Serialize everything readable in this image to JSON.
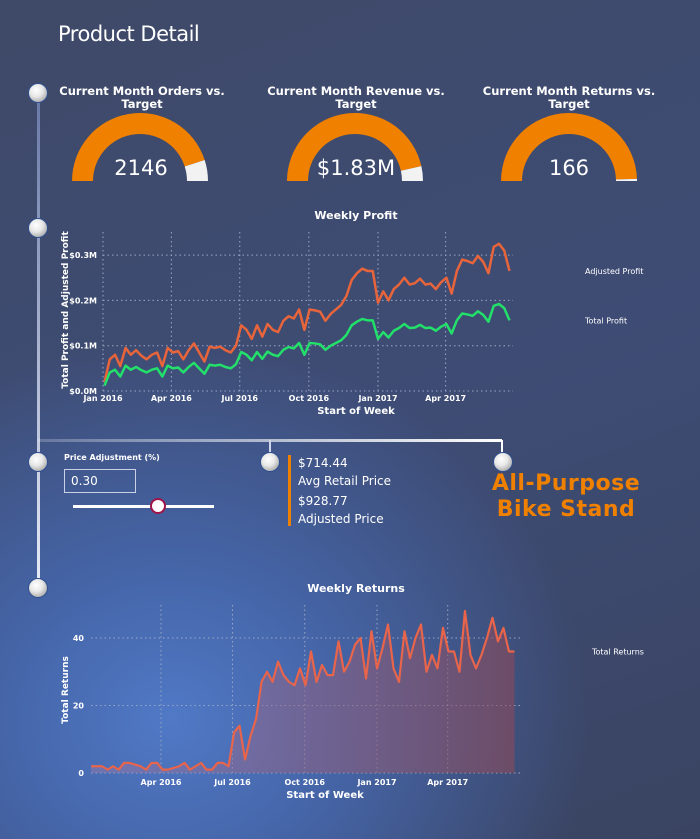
{
  "page": {
    "title": "Product Detail"
  },
  "colors": {
    "orange": "#f08000",
    "adjusted": "#e8643a",
    "total": "#22e06a",
    "returns": "#e8644a",
    "gauge_rest": "#f2f2f2"
  },
  "gauges": [
    {
      "title": "Current Month Orders vs. Target",
      "value": "2146",
      "fraction": 0.9
    },
    {
      "title": "Current Month Revenue vs. Target",
      "value": "$1.83M",
      "fraction": 0.93
    },
    {
      "title": "Current Month Returns vs. Target",
      "value": "166",
      "fraction": 0.99
    }
  ],
  "slicer": {
    "label": "Price Adjustment (%)",
    "value": "0.30",
    "slider_fraction": 0.6
  },
  "kpis": [
    {
      "value": "$714.44",
      "label": "Avg Retail Price"
    },
    {
      "value": "$928.77",
      "label": "Adjusted Price"
    }
  ],
  "product_name": [
    "All-Purpose",
    "Bike Stand"
  ],
  "weeks": [
    "2016-01-03",
    "2016-01-10",
    "2016-01-17",
    "2016-01-24",
    "2016-01-31",
    "2016-02-07",
    "2016-02-14",
    "2016-02-21",
    "2016-02-28",
    "2016-03-06",
    "2016-03-13",
    "2016-03-20",
    "2016-03-27",
    "2016-04-03",
    "2016-04-10",
    "2016-04-17",
    "2016-04-24",
    "2016-05-01",
    "2016-05-08",
    "2016-05-15",
    "2016-05-22",
    "2016-05-29",
    "2016-06-05",
    "2016-06-12",
    "2016-06-19",
    "2016-06-26",
    "2016-07-03",
    "2016-07-10",
    "2016-07-17",
    "2016-07-24",
    "2016-07-31",
    "2016-08-07",
    "2016-08-14",
    "2016-08-21",
    "2016-08-28",
    "2016-09-04",
    "2016-09-11",
    "2016-09-18",
    "2016-09-25",
    "2016-10-02",
    "2016-10-09",
    "2016-10-16",
    "2016-10-23",
    "2016-10-30",
    "2016-11-06",
    "2016-11-13",
    "2016-11-20",
    "2016-11-27",
    "2016-12-04",
    "2016-12-11",
    "2016-12-18",
    "2016-12-25",
    "2017-01-01",
    "2017-01-08",
    "2017-01-15",
    "2017-01-22",
    "2017-01-29",
    "2017-02-05",
    "2017-02-12",
    "2017-02-19",
    "2017-02-26",
    "2017-03-05",
    "2017-03-12",
    "2017-03-19",
    "2017-03-26",
    "2017-04-02",
    "2017-04-09",
    "2017-04-16",
    "2017-04-23",
    "2017-04-30",
    "2017-05-07",
    "2017-05-14",
    "2017-05-21",
    "2017-05-28",
    "2017-06-04",
    "2017-06-11",
    "2017-06-18",
    "2017-06-25"
  ],
  "chart_data": [
    {
      "type": "line",
      "title": "Weekly Profit",
      "xlabel": "Start of Week",
      "ylabel": "Total Profit and Adjusted Profit",
      "xticks": [
        "Jan 2016",
        "Apr 2016",
        "Jul 2016",
        "Oct 2016",
        "Jan 2017",
        "Apr 2017"
      ],
      "xtick_dates": [
        "2016-01-01",
        "2016-04-01",
        "2016-07-01",
        "2016-10-01",
        "2017-01-01",
        "2017-04-01"
      ],
      "yticks": [
        "$0.0M",
        "$0.1M",
        "$0.2M",
        "$0.3M"
      ],
      "ytick_values": [
        0,
        0.1,
        0.2,
        0.3
      ],
      "ylim": [
        0,
        0.35
      ],
      "yunit": "$M",
      "grid": true,
      "legend": "line-end labels",
      "series": [
        {
          "name": "Adjusted Profit",
          "values": [
            0.02,
            0.07,
            0.08,
            0.055,
            0.095,
            0.08,
            0.09,
            0.078,
            0.07,
            0.08,
            0.085,
            0.055,
            0.095,
            0.085,
            0.088,
            0.07,
            0.09,
            0.105,
            0.085,
            0.065,
            0.098,
            0.095,
            0.098,
            0.09,
            0.085,
            0.1,
            0.145,
            0.135,
            0.115,
            0.145,
            0.12,
            0.148,
            0.135,
            0.13,
            0.155,
            0.165,
            0.16,
            0.18,
            0.135,
            0.18,
            0.178,
            0.175,
            0.155,
            0.17,
            0.18,
            0.19,
            0.21,
            0.245,
            0.26,
            0.27,
            0.265,
            0.265,
            0.195,
            0.22,
            0.2,
            0.225,
            0.235,
            0.25,
            0.235,
            0.238,
            0.248,
            0.235,
            0.237,
            0.225,
            0.24,
            0.25,
            0.215,
            0.265,
            0.29,
            0.287,
            0.282,
            0.298,
            0.285,
            0.26,
            0.318,
            0.325,
            0.31,
            0.265
          ]
        },
        {
          "name": "Total Profit",
          "values": [
            0.012,
            0.041,
            0.047,
            0.032,
            0.056,
            0.047,
            0.053,
            0.046,
            0.041,
            0.047,
            0.05,
            0.032,
            0.056,
            0.05,
            0.052,
            0.041,
            0.053,
            0.062,
            0.05,
            0.038,
            0.058,
            0.056,
            0.058,
            0.053,
            0.05,
            0.059,
            0.086,
            0.08,
            0.068,
            0.086,
            0.071,
            0.087,
            0.08,
            0.077,
            0.091,
            0.097,
            0.094,
            0.106,
            0.08,
            0.106,
            0.105,
            0.103,
            0.091,
            0.1,
            0.106,
            0.112,
            0.124,
            0.145,
            0.153,
            0.159,
            0.156,
            0.156,
            0.115,
            0.13,
            0.118,
            0.133,
            0.139,
            0.148,
            0.139,
            0.14,
            0.146,
            0.139,
            0.14,
            0.133,
            0.142,
            0.148,
            0.127,
            0.156,
            0.171,
            0.169,
            0.166,
            0.176,
            0.168,
            0.153,
            0.188,
            0.192,
            0.183,
            0.156
          ]
        }
      ]
    },
    {
      "type": "area",
      "title": "Weekly Returns",
      "xlabel": "Start of Week",
      "ylabel": "Total Returns",
      "xticks": [
        "Apr 2016",
        "Jul 2016",
        "Oct 2016",
        "Jan 2017",
        "Apr 2017"
      ],
      "xtick_dates": [
        "2016-04-01",
        "2016-07-01",
        "2016-10-01",
        "2017-01-01",
        "2017-04-01"
      ],
      "yticks": [
        "0",
        "20",
        "40"
      ],
      "ytick_values": [
        0,
        20,
        40
      ],
      "ylim": [
        0,
        50
      ],
      "grid": true,
      "legend": "line-end label",
      "series": [
        {
          "name": "Total Returns",
          "values": [
            2,
            2,
            2,
            1,
            2,
            1,
            3,
            3,
            2.5,
            2,
            1,
            3,
            3,
            1,
            1,
            1.5,
            2,
            3,
            1,
            2,
            3,
            1,
            1,
            3,
            3,
            2,
            12,
            14,
            4,
            11,
            16,
            27,
            30,
            27,
            33,
            29,
            27,
            26,
            31,
            26,
            36,
            27,
            32,
            29,
            29,
            39,
            30,
            33,
            38,
            40,
            28,
            42,
            31,
            37,
            44,
            31,
            27,
            42,
            34,
            40,
            44,
            30,
            35,
            31,
            43,
            36,
            36,
            30,
            48,
            35,
            31,
            35,
            40,
            46,
            39,
            43,
            36,
            36
          ]
        }
      ]
    }
  ]
}
